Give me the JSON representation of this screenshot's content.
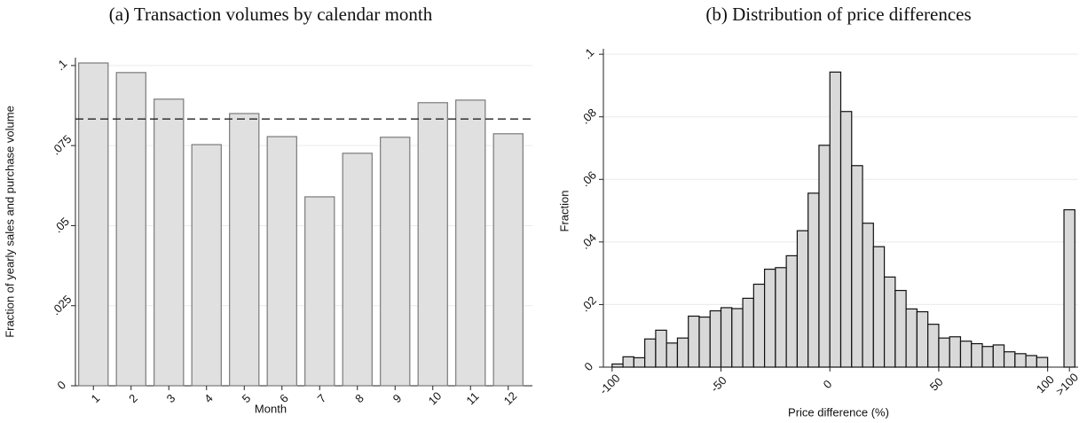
{
  "chart_data": [
    {
      "type": "bar",
      "title": "(a) Transaction volumes by calendar month",
      "x_label": "Month",
      "y_label": "Fraction of yearly sales and purchase volume",
      "categories": [
        "1",
        "2",
        "3",
        "4",
        "5",
        "6",
        "7",
        "8",
        "9",
        "10",
        "11",
        "12"
      ],
      "values": [
        0.1008,
        0.0978,
        0.0895,
        0.0753,
        0.085,
        0.0778,
        0.059,
        0.0726,
        0.0776,
        0.0884,
        0.0892,
        0.0787
      ],
      "color": "#e0e0e0",
      "reference_line": 0.0833,
      "ylim": [
        0,
        0.108
      ],
      "yticks": [
        0,
        {
          "value": 0.025,
          "label": ".025"
        },
        {
          "value": 0.05,
          "label": ".05"
        },
        {
          "value": 0.075,
          "label": ".075"
        },
        {
          "value": 0.1,
          "label": ".1"
        }
      ],
      "grid": true
    },
    {
      "type": "histogram",
      "title": "(b) Distribution of price differences",
      "x_label": "Price difference (%)",
      "y_label": "Fraction",
      "bins": [
        -100,
        -95,
        -90,
        -85,
        -80,
        -75,
        -70,
        -65,
        -60,
        -55,
        -50,
        -45,
        -40,
        -35,
        -30,
        -25,
        -20,
        -15,
        -10,
        -5,
        0,
        5,
        10,
        15,
        20,
        25,
        30,
        35,
        40,
        45,
        50,
        55,
        60,
        65,
        70,
        75,
        80,
        85,
        90,
        95,
        100
      ],
      "values": [
        0.001,
        0.0033,
        0.003,
        0.009,
        0.0118,
        0.0077,
        0.0093,
        0.0163,
        0.016,
        0.018,
        0.019,
        0.0187,
        0.022,
        0.0265,
        0.0313,
        0.0318,
        0.0356,
        0.0436,
        0.0556,
        0.0709,
        0.0943,
        0.0817,
        0.0644,
        0.046,
        0.0385,
        0.0288,
        0.0245,
        0.0186,
        0.0177,
        0.0137,
        0.0093,
        0.0097,
        0.0083,
        0.0075,
        0.0066,
        0.0071,
        0.0049,
        0.0043,
        0.0037,
        0.0031
      ],
      "overflow": {
        "bin": [
          107.5,
          112.5
        ],
        "value": 0.0503
      },
      "color": "#d9d9d9",
      "xlim": [
        -104,
        114
      ],
      "ylim": [
        0,
        0.106
      ],
      "xticks": [
        -100,
        -50,
        0,
        50,
        100,
        {
          "value": 110,
          "label": ">100"
        }
      ],
      "yticks": [
        0,
        {
          "value": 0.02,
          "label": ".02"
        },
        {
          "value": 0.04,
          "label": ".04"
        },
        {
          "value": 0.06,
          "label": ".06"
        },
        {
          "value": 0.08,
          "label": ".08"
        },
        {
          "value": 0.1,
          "label": ".1"
        }
      ],
      "grid": true
    }
  ]
}
